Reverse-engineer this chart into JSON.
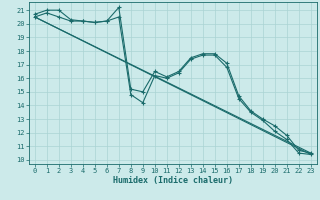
{
  "xlabel": "Humidex (Indice chaleur)",
  "xlim": [
    -0.5,
    23.5
  ],
  "ylim": [
    9.7,
    21.6
  ],
  "yticks": [
    10,
    11,
    12,
    13,
    14,
    15,
    16,
    17,
    18,
    19,
    20,
    21
  ],
  "xticks": [
    0,
    1,
    2,
    3,
    4,
    5,
    6,
    7,
    8,
    9,
    10,
    11,
    12,
    13,
    14,
    15,
    16,
    17,
    18,
    19,
    20,
    21,
    22,
    23
  ],
  "bg_color": "#cceaea",
  "line_color": "#1a6b6b",
  "grid_color": "#aad4d4",
  "series_wavy1": {
    "x": [
      0,
      1,
      2,
      3,
      4,
      5,
      6,
      7,
      8,
      9,
      10,
      11,
      12,
      13,
      14,
      15,
      16,
      17,
      18,
      19,
      20,
      21,
      22,
      23
    ],
    "y": [
      20.7,
      21.0,
      21.0,
      20.3,
      20.2,
      20.1,
      20.2,
      21.2,
      15.2,
      15.0,
      16.5,
      16.1,
      16.5,
      17.5,
      17.8,
      17.8,
      17.1,
      14.7,
      13.6,
      13.0,
      12.5,
      11.8,
      10.7,
      10.5
    ]
  },
  "series_wavy2": {
    "x": [
      0,
      1,
      2,
      3,
      4,
      5,
      6,
      7,
      8,
      9,
      10,
      11,
      12,
      13,
      14,
      15,
      16,
      17,
      18,
      19,
      20,
      21,
      22,
      23
    ],
    "y": [
      20.5,
      20.8,
      20.5,
      20.2,
      20.2,
      20.1,
      20.2,
      20.5,
      14.8,
      14.2,
      16.2,
      16.0,
      16.4,
      17.4,
      17.7,
      17.7,
      16.8,
      14.5,
      13.5,
      12.9,
      12.1,
      11.5,
      10.5,
      10.4
    ]
  },
  "straight1": {
    "x": [
      0,
      23
    ],
    "y": [
      20.5,
      10.5
    ]
  },
  "straight2": {
    "x": [
      0,
      23
    ],
    "y": [
      20.5,
      10.4
    ]
  }
}
